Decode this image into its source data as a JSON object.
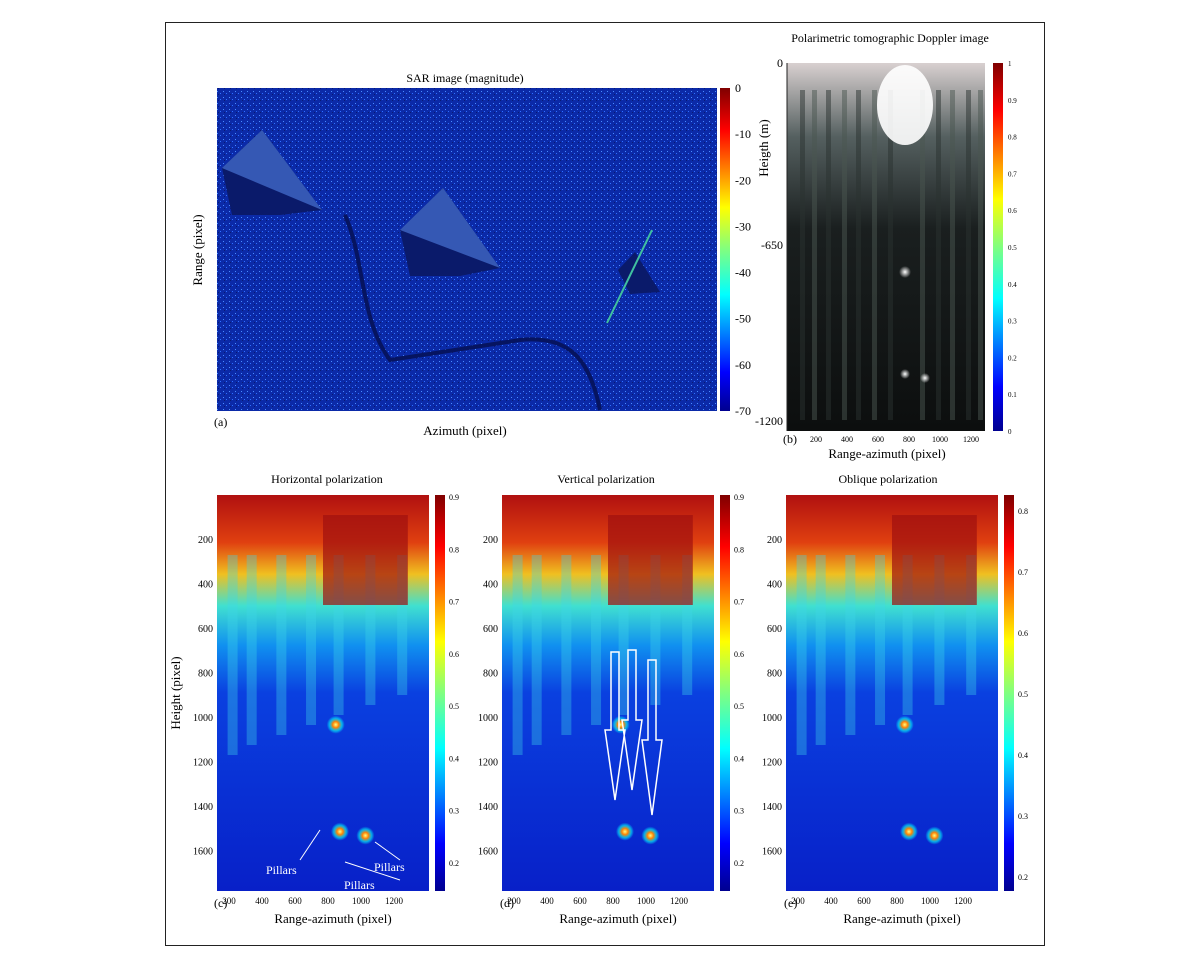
{
  "colors": {
    "frame": "#222222",
    "sar_dark": "#0a1a8a",
    "sar_bright": "#2a6aff",
    "jet": [
      "#00008f",
      "#0000ff",
      "#0080ff",
      "#00ffff",
      "#80ff80",
      "#ffff00",
      "#ff8000",
      "#ff0000",
      "#800000"
    ]
  },
  "panels": {
    "a": {
      "letter": "(a)",
      "title": "SAR image (magnitude)",
      "xlabel": "Azimuth (pixel)",
      "ylabel": "Range (pixel)",
      "colorbar_ticks": [
        "0",
        "-10",
        "-20",
        "-30",
        "-40",
        "-50",
        "-60",
        "-70"
      ]
    },
    "b": {
      "letter": "(b)",
      "title": "Polarimetric tomographic Doppler image",
      "xlabel": "Range-azimuth (pixel)",
      "ylabel": "Heigth (m)",
      "yticks": [
        "0",
        "-650",
        "-1200"
      ],
      "xticks": [
        "200",
        "400",
        "600",
        "800",
        "1000",
        "1200"
      ],
      "colorbar_ticks": [
        "1",
        "0.9",
        "0.8",
        "0.7",
        "0.6",
        "0.5",
        "0.4",
        "0.3",
        "0.2",
        "0.1",
        "0"
      ]
    },
    "c": {
      "letter": "(c)",
      "title": "Horizontal polarization",
      "xlabel": "Range-azimuth (pixel)",
      "ylabel": "Height (pixel)",
      "yticks": [
        "200",
        "400",
        "600",
        "800",
        "1000",
        "1200",
        "1400",
        "1600"
      ],
      "xticks": [
        "200",
        "400",
        "600",
        "800",
        "1000",
        "1200"
      ],
      "colorbar_ticks": [
        "0.9",
        "0.8",
        "0.7",
        "0.6",
        "0.5",
        "0.4",
        "0.3",
        "0.2"
      ],
      "annotations": [
        "Pillars",
        "Pillars",
        "Pillars"
      ]
    },
    "d": {
      "letter": "(d)",
      "title": "Vertical polarization",
      "xlabel": "Range-azimuth (pixel)",
      "yticks": [
        "200",
        "400",
        "600",
        "800",
        "1000",
        "1200",
        "1400",
        "1600"
      ],
      "xticks": [
        "200",
        "400",
        "600",
        "800",
        "1000",
        "1200"
      ],
      "colorbar_ticks": [
        "0.9",
        "0.8",
        "0.7",
        "0.6",
        "0.5",
        "0.4",
        "0.3",
        "0.2"
      ]
    },
    "e": {
      "letter": "(e)",
      "title": "Oblique polarization",
      "xlabel": "Range-azimuth (pixel)",
      "yticks": [
        "200",
        "400",
        "600",
        "800",
        "1000",
        "1200",
        "1400",
        "1600"
      ],
      "xticks": [
        "200",
        "400",
        "600",
        "800",
        "1000",
        "1200"
      ],
      "colorbar_ticks": [
        "0.8",
        "0.7",
        "0.6",
        "0.5",
        "0.4",
        "0.3",
        "0.2"
      ]
    }
  },
  "chart_data": [
    {
      "type": "heatmap",
      "title": "SAR image (magnitude)",
      "xlabel": "Azimuth (pixel)",
      "ylabel": "Range (pixel)",
      "colorbar": {
        "min": -70,
        "max": 0,
        "ticks": [
          0,
          -10,
          -20,
          -30,
          -40,
          -50,
          -60,
          -70
        ]
      }
    },
    {
      "type": "heatmap",
      "title": "Polarimetric tomographic Doppler image",
      "xlabel": "Range-azimuth (pixel)",
      "ylabel": "Heigth (m)",
      "yticks": [
        0,
        -650,
        -1200
      ],
      "xticks": [
        200,
        400,
        600,
        800,
        1000,
        1200
      ],
      "colorbar": {
        "min": 0,
        "max": 1,
        "ticks": [
          0,
          0.1,
          0.2,
          0.3,
          0.4,
          0.5,
          0.6,
          0.7,
          0.8,
          0.9,
          1
        ]
      }
    },
    {
      "type": "heatmap",
      "title": "Horizontal polarization",
      "xlabel": "Range-azimuth (pixel)",
      "ylabel": "Height (pixel)",
      "yticks": [
        200,
        400,
        600,
        800,
        1000,
        1200,
        1400,
        1600
      ],
      "xticks": [
        200,
        400,
        600,
        800,
        1000,
        1200
      ],
      "colorbar": {
        "min": 0.15,
        "max": 0.9,
        "ticks": [
          0.2,
          0.3,
          0.4,
          0.5,
          0.6,
          0.7,
          0.8,
          0.9
        ]
      }
    },
    {
      "type": "heatmap",
      "title": "Vertical polarization",
      "xlabel": "Range-azimuth (pixel)",
      "yticks": [
        200,
        400,
        600,
        800,
        1000,
        1200,
        1400,
        1600
      ],
      "xticks": [
        200,
        400,
        600,
        800,
        1000,
        1200
      ],
      "colorbar": {
        "min": 0.15,
        "max": 0.9,
        "ticks": [
          0.2,
          0.3,
          0.4,
          0.5,
          0.6,
          0.7,
          0.8,
          0.9
        ]
      }
    },
    {
      "type": "heatmap",
      "title": "Oblique polarization",
      "xlabel": "Range-azimuth (pixel)",
      "yticks": [
        200,
        400,
        600,
        800,
        1000,
        1200,
        1400,
        1600
      ],
      "xticks": [
        200,
        400,
        600,
        800,
        1000,
        1200
      ],
      "colorbar": {
        "min": 0.15,
        "max": 0.85,
        "ticks": [
          0.2,
          0.3,
          0.4,
          0.5,
          0.6,
          0.7,
          0.8
        ]
      }
    }
  ]
}
